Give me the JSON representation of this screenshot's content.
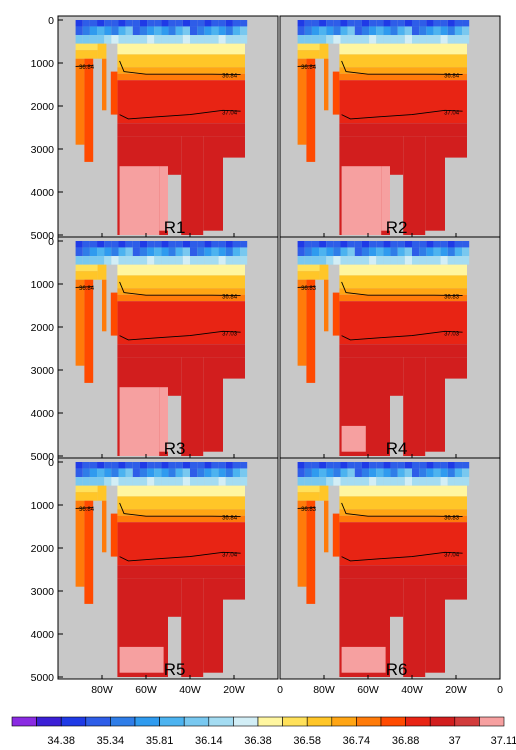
{
  "chart_data": {
    "type": "heatmap",
    "description_free": true,
    "xaxis": {
      "ticks": [
        -80,
        -60,
        -40,
        -20
      ],
      "tick_labels": [
        "80W",
        "60W",
        "40W",
        "20W"
      ],
      "bottom_row_extra_labels": [
        "0",
        "0"
      ],
      "xlim": [
        -100,
        0
      ]
    },
    "yaxis": {
      "ticks": [
        0,
        1000,
        2000,
        3000,
        4000,
        5000
      ],
      "tick_labels": [
        "0",
        "1000",
        "2000",
        "3000",
        "4000",
        "5000"
      ],
      "ylim": [
        5000,
        0
      ],
      "inverted": true
    },
    "colorbar": {
      "orientation": "horizontal",
      "tick_labels": [
        "34.38",
        "35.34",
        "35.81",
        "36.14",
        "36.38",
        "36.58",
        "36.74",
        "36.88",
        "37",
        "37.11"
      ],
      "colors": [
        "#8a2be2",
        "#3b1fd6",
        "#1f3ae6",
        "#2e5de8",
        "#2f7de8",
        "#2f9bef",
        "#4cb3f0",
        "#78c8f0",
        "#a4dcf2",
        "#d2eef6",
        "#fff6a0",
        "#ffe15a",
        "#ffc628",
        "#ffa514",
        "#ff7b0a",
        "#ff4a00",
        "#e82414",
        "#d21e1e",
        "#d23c3c",
        "#f6a0a0"
      ]
    },
    "panels": [
      {
        "label": "R1",
        "contours": [
          {
            "value": "36.84",
            "label": "36.84"
          },
          {
            "value": "36.84",
            "label": "36.84"
          },
          {
            "value": "37.04",
            "label": "37.04"
          }
        ]
      },
      {
        "label": "R2",
        "contours": [
          {
            "value": "36.84",
            "label": "36.84"
          },
          {
            "value": "36.84",
            "label": "36.84"
          },
          {
            "value": "37.04",
            "label": "37.04"
          }
        ]
      },
      {
        "label": "R3",
        "contours": [
          {
            "value": "36.84",
            "label": "36.84"
          },
          {
            "value": "36.84",
            "label": "36.84"
          },
          {
            "value": "37.03",
            "label": "37.03"
          }
        ]
      },
      {
        "label": "R4",
        "contours": [
          {
            "value": "36.83",
            "label": "36.83"
          },
          {
            "value": "36.83",
            "label": "36.83"
          },
          {
            "value": "37.03",
            "label": "37.03"
          }
        ]
      },
      {
        "label": "R5",
        "contours": [
          {
            "value": "36.84",
            "label": "36.84"
          },
          {
            "value": "36.84",
            "label": "36.84"
          },
          {
            "value": "37.04",
            "label": "37.04"
          }
        ]
      },
      {
        "label": "R6",
        "contours": [
          {
            "value": "36.83",
            "label": "36.83"
          },
          {
            "value": "36.83",
            "label": "36.83"
          },
          {
            "value": "37.04",
            "label": "37.04"
          }
        ]
      }
    ],
    "land_color": "#c8c8c8"
  }
}
